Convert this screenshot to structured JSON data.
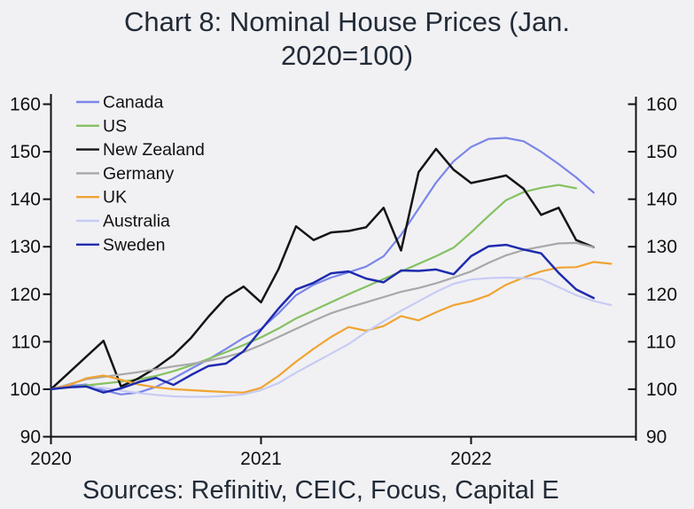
{
  "title": "Chart 8: Nominal House Prices (Jan. 2020=100)",
  "source_text": "Sources: Refinitiv, CEIC, Focus, Capital E",
  "colors": {
    "background": "#f1f1f4",
    "text": "#222b37",
    "tick_label": "#111111",
    "axis": "#111111"
  },
  "chart_data": {
    "type": "line",
    "title": "Chart 8: Nominal House Prices (Jan. 2020=100)",
    "ylim": [
      90,
      160
    ],
    "y_ticks": [
      90,
      100,
      110,
      120,
      130,
      140,
      150,
      160
    ],
    "y_axis_both_sides": true,
    "grid": false,
    "legend_position": "upper-left",
    "x_tick_labels": [
      "2020",
      "2021",
      "2022"
    ],
    "x_tick_month_index": [
      0,
      12,
      24
    ],
    "months": [
      "2020-01",
      "2020-02",
      "2020-03",
      "2020-04",
      "2020-05",
      "2020-06",
      "2020-07",
      "2020-08",
      "2020-09",
      "2020-10",
      "2020-11",
      "2020-12",
      "2021-01",
      "2021-02",
      "2021-03",
      "2021-04",
      "2021-05",
      "2021-06",
      "2021-07",
      "2021-08",
      "2021-09",
      "2021-10",
      "2021-11",
      "2021-12",
      "2022-01",
      "2022-02",
      "2022-03",
      "2022-04",
      "2022-05",
      "2022-06",
      "2022-07",
      "2022-08",
      "2022-09"
    ],
    "series": [
      {
        "name": "Canada",
        "color": "#7b86e8",
        "values": [
          100,
          100.7,
          101,
          99.8,
          98.9,
          99.3,
          100.5,
          102.3,
          104.3,
          106.3,
          108.5,
          110.8,
          112.7,
          116,
          119.8,
          122,
          123.5,
          124.6,
          125.8,
          128,
          132.5,
          138,
          143.5,
          148,
          151,
          152.7,
          152.9,
          152.2,
          150,
          147.4,
          144.6,
          141.4,
          null
        ]
      },
      {
        "name": "US",
        "color": "#85c161",
        "values": [
          100,
          100.4,
          100.8,
          101.2,
          101.6,
          102.1,
          102.8,
          103.8,
          105,
          106.4,
          107.8,
          109.3,
          110.9,
          112.8,
          114.9,
          116.6,
          118.3,
          120,
          121.6,
          123.2,
          124.8,
          126.4,
          128,
          129.8,
          133,
          136.5,
          139.8,
          141.5,
          142.4,
          143,
          142.3,
          null,
          null
        ]
      },
      {
        "name": "New Zealand",
        "color": "#141414",
        "values": [
          100,
          103.4,
          106.8,
          110.2,
          100.6,
          102.3,
          104.5,
          107.2,
          110.8,
          115.3,
          119.3,
          121.6,
          118.3,
          125.3,
          134.3,
          131.4,
          133,
          133.3,
          134.1,
          138.2,
          129.2,
          145.7,
          150.6,
          146.2,
          143.4,
          144.2,
          145,
          142.2,
          136.7,
          138.2,
          131.4,
          129.9,
          null
        ]
      },
      {
        "name": "Germany",
        "color": "#a8a8aa",
        "values": [
          100,
          101,
          102.1,
          102.6,
          103.1,
          103.6,
          104.2,
          104.8,
          105.3,
          106,
          106.8,
          107.8,
          109.3,
          111,
          112.7,
          114.4,
          116,
          117.2,
          118.3,
          119.4,
          120.5,
          121.3,
          122.3,
          123.5,
          124.8,
          126.6,
          128.2,
          129.3,
          130,
          130.7,
          130.8,
          129.9,
          null
        ]
      },
      {
        "name": "UK",
        "color": "#f0a431",
        "values": [
          100,
          100.8,
          102.3,
          102.9,
          102,
          101,
          100.4,
          100,
          99.8,
          99.6,
          99.4,
          99.3,
          100.3,
          102.8,
          105.8,
          108.5,
          111,
          113.1,
          112.3,
          113.3,
          115.4,
          114.5,
          116.2,
          117.7,
          118.5,
          119.8,
          122,
          123.5,
          124.8,
          125.6,
          125.7,
          126.8,
          126.4
        ]
      },
      {
        "name": "Australia",
        "color": "#c7ccf3",
        "values": [
          100,
          100.3,
          100.5,
          100.3,
          99.7,
          99.2,
          98.8,
          98.5,
          98.4,
          98.4,
          98.6,
          98.9,
          99.8,
          101.3,
          103.5,
          105.5,
          107.5,
          109.5,
          112,
          114.3,
          116.5,
          118.5,
          120.5,
          122.2,
          123.1,
          123.4,
          123.5,
          123.4,
          123.2,
          121.5,
          119.8,
          118.6,
          117.7
        ]
      },
      {
        "name": "Sweden",
        "color": "#1e2bae",
        "values": [
          100,
          100.4,
          100.6,
          99.3,
          100.2,
          101.5,
          102.4,
          100.9,
          103,
          104.9,
          105.4,
          108,
          112.5,
          117,
          121,
          122.4,
          124.4,
          124.8,
          123.3,
          122.5,
          125,
          124.9,
          125.2,
          124.2,
          128,
          130.1,
          130.4,
          129.4,
          128.6,
          124.5,
          121,
          119.2,
          null
        ]
      }
    ]
  }
}
